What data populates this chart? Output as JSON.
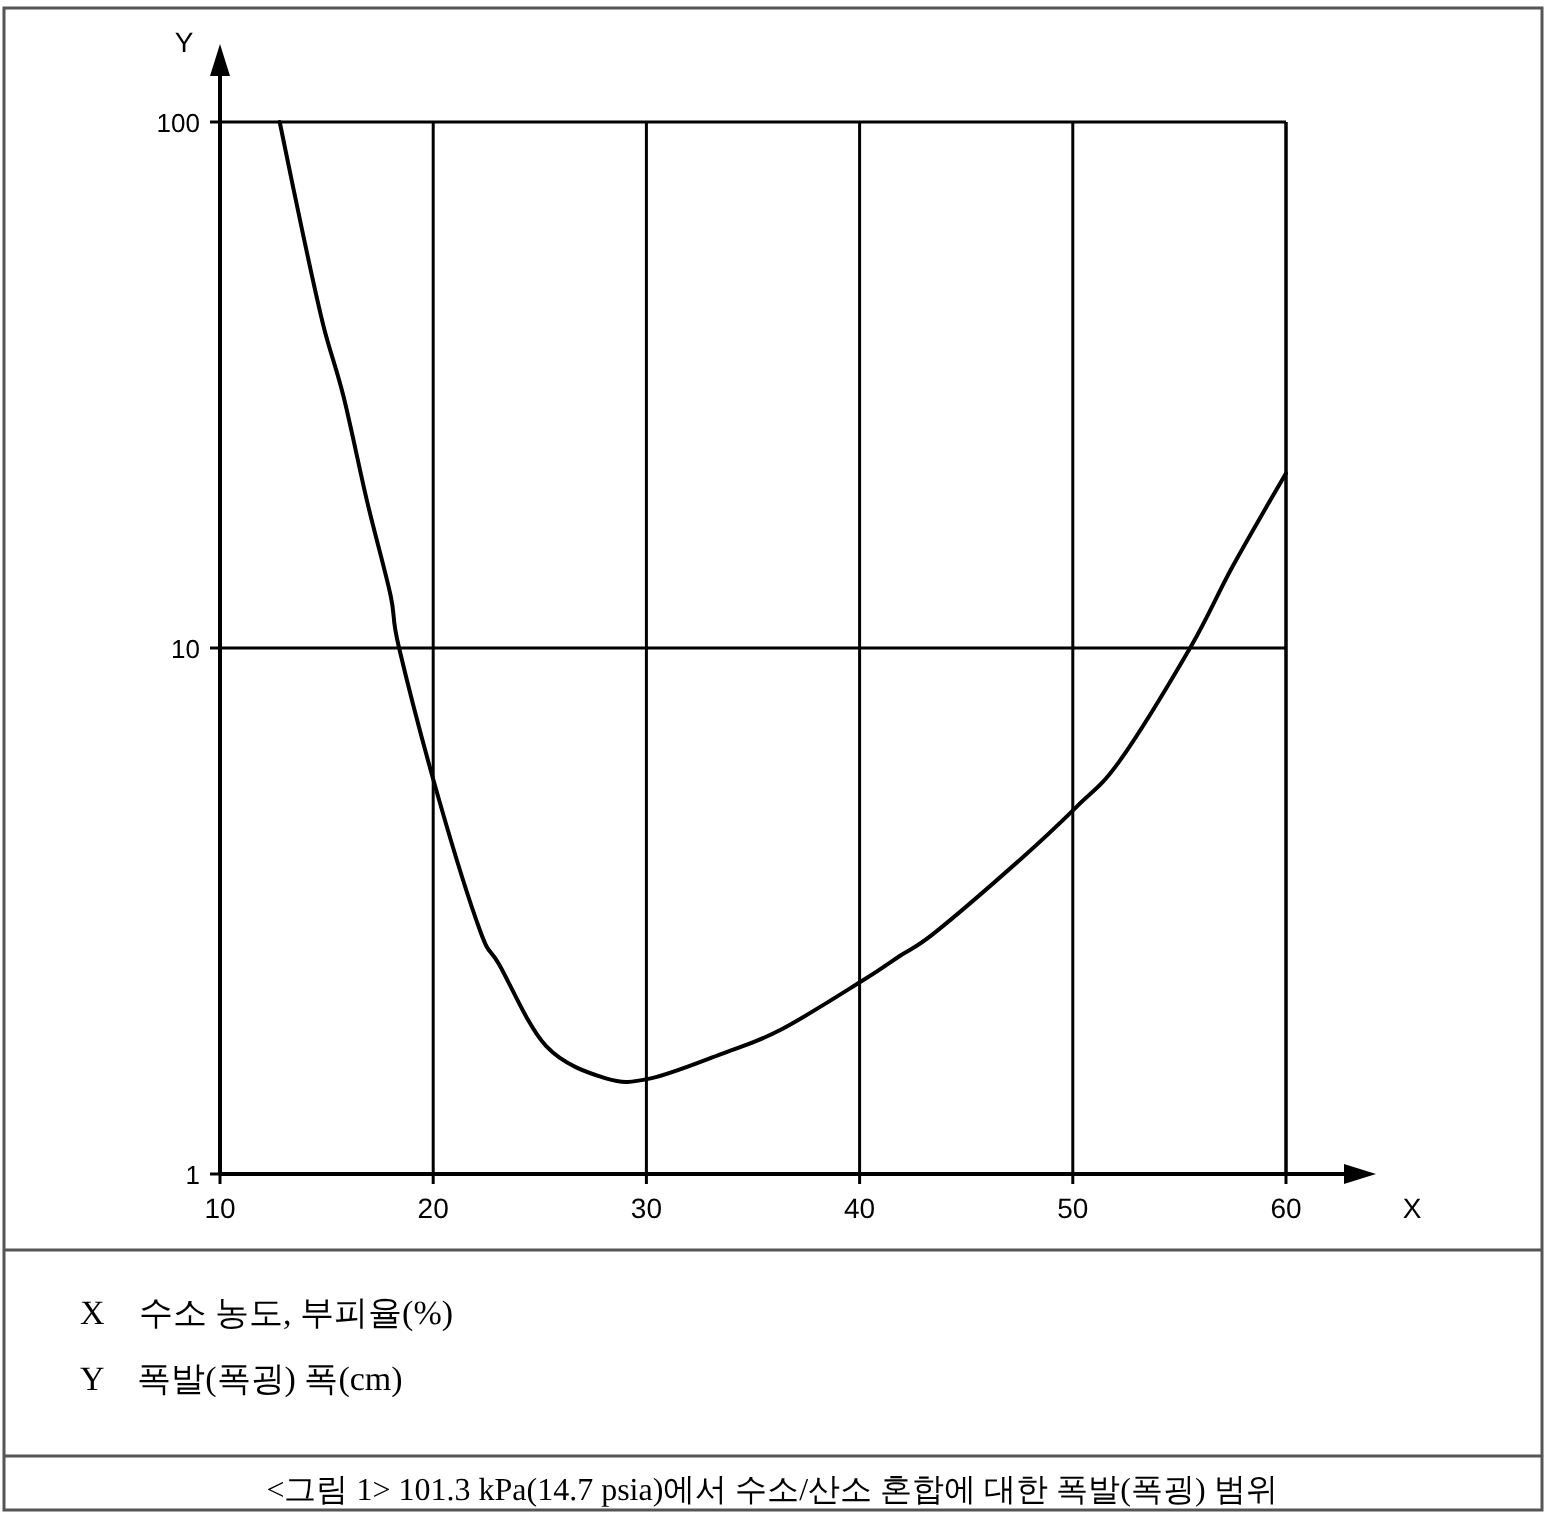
{
  "chart_data": {
    "type": "line",
    "xlabel": "X",
    "ylabel": "Y",
    "log": "y",
    "grid": true,
    "xlim": [
      10,
      60
    ],
    "ylim": [
      1,
      100
    ],
    "xticks": [
      10,
      20,
      30,
      40,
      50,
      60
    ],
    "yticks": [
      1,
      10,
      100
    ],
    "series": [
      {
        "color": "#000000",
        "x": [
          12.8,
          13.9,
          14.85,
          15.8,
          16.9,
          18.0,
          18.4,
          20.3,
          22.2,
          23.1,
          25.3,
          28.1,
          30.2,
          33.5,
          36.3,
          40.2,
          41.9,
          43.5,
          47.5,
          50.2,
          52.2,
          55.5,
          57.5,
          60
        ],
        "values": [
          100,
          61,
          41,
          30,
          19,
          12.6,
          10,
          5.1,
          2.9,
          2.5,
          1.75,
          1.52,
          1.52,
          1.69,
          1.88,
          2.34,
          2.6,
          2.87,
          3.95,
          5.0,
          6.1,
          10,
          14.3,
          21.5
        ]
      }
    ],
    "annotations": [
      "X　수소 농도, 부피율(%)",
      "Y　폭발(폭굉) 폭(cm)",
      "<그림 1> 101.3 kPa(14.7 psia)에서 수소/산소 혼합에 대한 폭발(폭굉) 범위"
    ]
  }
}
